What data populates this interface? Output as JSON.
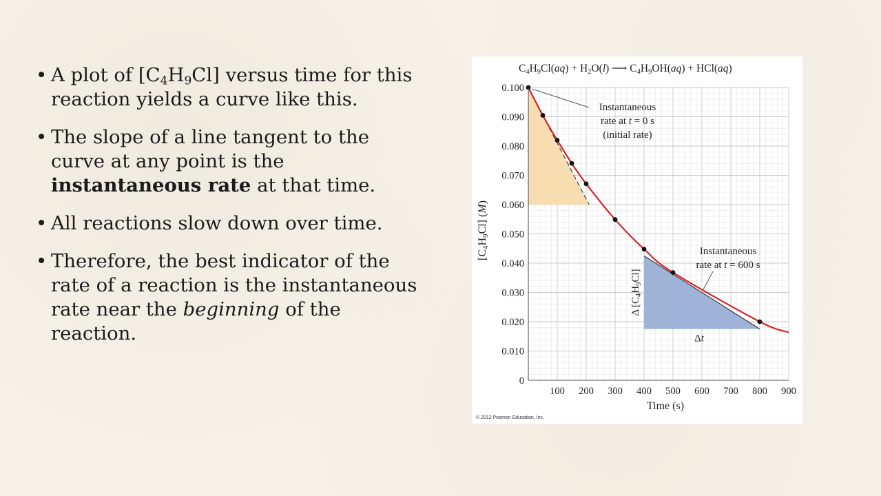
{
  "bullets": [
    {
      "parts": [
        {
          "t": "A plot of [C"
        },
        {
          "t": "4",
          "sub": true
        },
        {
          "t": "H"
        },
        {
          "t": "9",
          "sub": true
        },
        {
          "t": "Cl] versus time for this reaction yields a curve like this."
        }
      ]
    },
    {
      "parts": [
        {
          "t": "The slope of a line tangent to the curve at any point is the "
        },
        {
          "t": "instantaneous rate",
          "b": true
        },
        {
          "t": " at that time."
        }
      ]
    },
    {
      "parts": [
        {
          "t": "All reactions slow down over time."
        }
      ]
    },
    {
      "parts": [
        {
          "t": "Therefore, the best indicator of the rate of a reaction is the instantaneous rate near the "
        },
        {
          "t": "beginning",
          "i": true
        },
        {
          "t": " of the reaction."
        }
      ]
    }
  ],
  "chart_data": {
    "type": "line",
    "equation": [
      {
        "t": "C"
      },
      {
        "t": "4",
        "sub": true
      },
      {
        "t": "H"
      },
      {
        "t": "9",
        "sub": true
      },
      {
        "t": "Cl("
      },
      {
        "t": "aq",
        "i": true
      },
      {
        "t": ") + H"
      },
      {
        "t": "2",
        "sub": true
      },
      {
        "t": "O("
      },
      {
        "t": "l",
        "i": true
      },
      {
        "t": ")  ⟶  C"
      },
      {
        "t": "4",
        "sub": true
      },
      {
        "t": "H"
      },
      {
        "t": "9",
        "sub": true
      },
      {
        "t": "OH("
      },
      {
        "t": "aq",
        "i": true
      },
      {
        "t": ") + HCl("
      },
      {
        "t": "aq",
        "i": true
      },
      {
        "t": ")"
      }
    ],
    "xlabel": "Time (s)",
    "ylabel": [
      {
        "t": "[C"
      },
      {
        "t": "4",
        "sub": true
      },
      {
        "t": "H"
      },
      {
        "t": "9",
        "sub": true
      },
      {
        "t": "Cl] ("
      },
      {
        "t": "M",
        "i": true
      },
      {
        "t": ")"
      }
    ],
    "xlim": [
      0,
      900
    ],
    "ylim": [
      0,
      0.1
    ],
    "xticks": [
      100,
      200,
      300,
      400,
      500,
      600,
      700,
      800,
      900
    ],
    "xtick_labels": [
      "100",
      "200",
      "300",
      "400",
      "500",
      "600",
      "700",
      "800",
      "900"
    ],
    "yticks": [
      0,
      0.01,
      0.02,
      0.03,
      0.04,
      0.05,
      0.06,
      0.07,
      0.08,
      0.09,
      0.1
    ],
    "ytick_labels": [
      "0",
      "0.010",
      "0.020",
      "0.030",
      "0.040",
      "0.050",
      "0.060",
      "0.070",
      "0.080",
      "0.090",
      "0.100"
    ],
    "grid": true,
    "points": {
      "x": [
        0,
        50,
        100,
        150,
        200,
        300,
        400,
        500,
        800
      ],
      "y": [
        0.1,
        0.0905,
        0.082,
        0.0741,
        0.0671,
        0.0549,
        0.0448,
        0.0368,
        0.02
      ]
    },
    "curve_color": "#d7222a",
    "point_color": "#111111",
    "tangent_t0": {
      "x0": 0,
      "y0": 0.1,
      "x1": 210,
      "y1": 0.06,
      "fill": "#f8ddb0",
      "label": [
        {
          "t": "Instantaneous"
        },
        {
          "t": "rate at "
        },
        {
          "t": "t",
          "i": true
        },
        {
          "t": " = 0 s"
        },
        {
          "t": "(initial rate)"
        }
      ]
    },
    "tangent_t600": {
      "x0": 400,
      "y0": 0.0425,
      "x1": 800,
      "y1": 0.0175,
      "fill": "#9fb3d9",
      "label": [
        "Instantaneous",
        "rate at ",
        "t",
        " = 600 s"
      ],
      "delta_y_label": [
        "Δ [C",
        "4",
        "H",
        "9",
        "Cl]"
      ],
      "delta_x_label": [
        "Δ",
        "t"
      ]
    },
    "copyright": "© 2012 Pearson Education, Inc."
  }
}
